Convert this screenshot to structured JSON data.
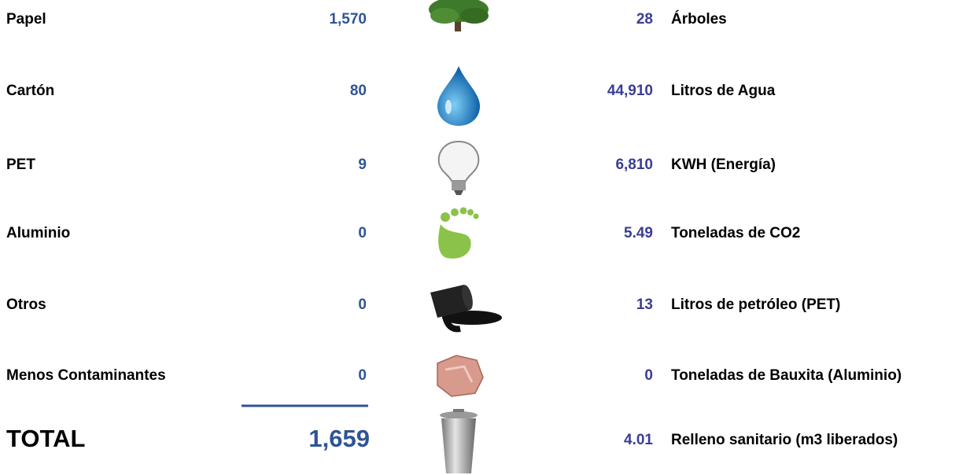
{
  "materials": [
    {
      "label": "Papel",
      "value": "1,570"
    },
    {
      "label": "Cartón",
      "value": "80"
    },
    {
      "label": "PET",
      "value": "9"
    },
    {
      "label": "Aluminio",
      "value": "0"
    },
    {
      "label": "Otros",
      "value": "0"
    },
    {
      "label": "Menos Contaminantes",
      "value": "0"
    }
  ],
  "total": {
    "label": "TOTAL",
    "value": "1,659"
  },
  "impacts": [
    {
      "value": "28",
      "label": "Árboles"
    },
    {
      "value": "44,910",
      "label": "Litros de Agua"
    },
    {
      "value": "6,810",
      "label": "KWH (Energía)"
    },
    {
      "value": "5.49",
      "label": "Toneladas de CO2"
    },
    {
      "value": "13",
      "label": "Litros de petróleo (PET)"
    },
    {
      "value": "0",
      "label": "Toneladas de Bauxita (Aluminio)"
    },
    {
      "value": "4.01",
      "label": "Relleno sanitario (m3 liberados)"
    }
  ]
}
